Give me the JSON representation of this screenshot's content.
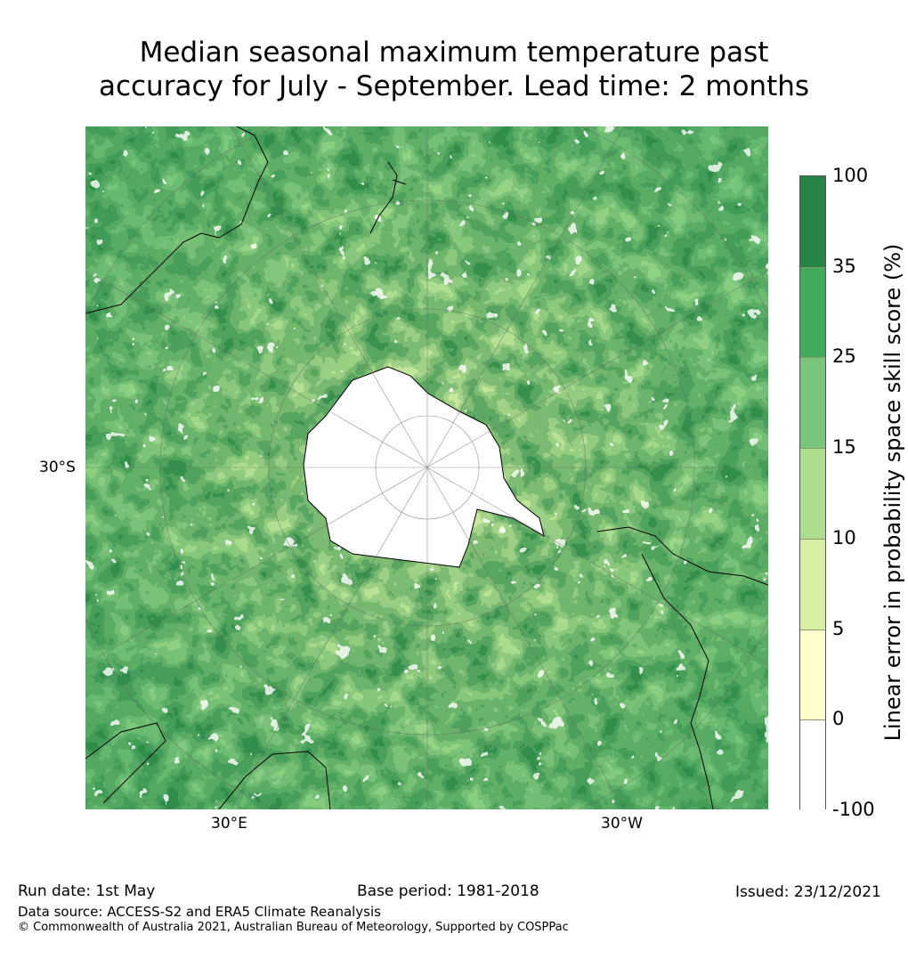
{
  "title_line1": "Median seasonal maximum temperature past",
  "title_line2": "accuracy for July - September. Lead time: 2 months",
  "map": {
    "lat_label": "30°S",
    "lon_label_left": "30°E",
    "lon_label_right": "30°W"
  },
  "colorbar": {
    "label": "Linear error in probability space skill score (%)",
    "ticks": [
      "100",
      "35",
      "25",
      "15",
      "10",
      "5",
      "0",
      "-100"
    ],
    "colors": [
      "#238443",
      "#41ab5d",
      "#78c679",
      "#addd8e",
      "#d9f0a3",
      "#ffffcc",
      "#ffffff"
    ]
  },
  "footer": {
    "run_date": "Run date: 1st May",
    "base_period": "Base period: 1981-2018",
    "issued": "Issued: 23/12/2021",
    "data_source": "Data source: ACCESS-S2 and ERA5 Climate Reanalysis",
    "copyright": "© Commonwealth of Australia 2021, Australian Bureau of Meteorology, Supported by COSPPac"
  }
}
